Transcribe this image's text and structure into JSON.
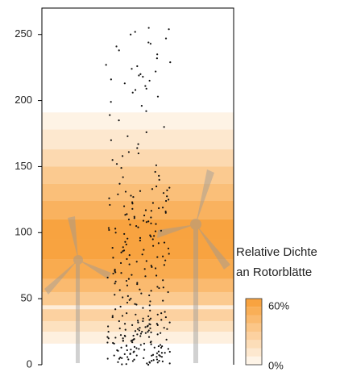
{
  "chart_data": {
    "type": "scatter",
    "ylim": [
      0,
      270
    ],
    "yticks": [
      0,
      50,
      100,
      150,
      200,
      250
    ],
    "point_color": "#111111",
    "band_color": "#f7931e",
    "bands": [
      {
        "from": 16,
        "to": 25,
        "value": 10
      },
      {
        "from": 25,
        "to": 33,
        "value": 20
      },
      {
        "from": 33,
        "to": 42,
        "value": 30
      },
      {
        "from": 42,
        "to": 45,
        "value": 12
      },
      {
        "from": 45,
        "to": 55,
        "value": 35
      },
      {
        "from": 55,
        "to": 65,
        "value": 45
      },
      {
        "from": 65,
        "to": 80,
        "value": 55
      },
      {
        "from": 80,
        "to": 95,
        "value": 60
      },
      {
        "from": 95,
        "to": 110,
        "value": 60
      },
      {
        "from": 110,
        "to": 124,
        "value": 50
      },
      {
        "from": 124,
        "to": 137,
        "value": 42
      },
      {
        "from": 137,
        "to": 150,
        "value": 35
      },
      {
        "from": 150,
        "to": 163,
        "value": 25
      },
      {
        "from": 163,
        "to": 178,
        "value": 15
      },
      {
        "from": 178,
        "to": 191,
        "value": 8
      }
    ],
    "values": [
      0,
      0.5,
      1,
      1,
      1.5,
      2,
      2,
      2.5,
      3,
      3,
      3.5,
      4,
      4,
      4.5,
      5,
      5,
      5.5,
      6,
      6,
      6.5,
      7,
      7,
      7.5,
      8,
      8,
      8.5,
      9,
      9,
      9.5,
      10,
      10,
      10.5,
      11,
      11,
      11.5,
      12,
      12,
      12.5,
      13,
      13,
      13.5,
      14,
      14,
      14.5,
      15,
      15,
      15.5,
      16,
      16,
      16.5,
      17,
      17,
      17.5,
      18,
      18,
      18.5,
      19,
      19,
      19.5,
      20,
      20,
      20.5,
      21,
      21,
      21.5,
      22,
      22,
      22.5,
      23,
      23,
      23.5,
      24,
      24,
      24.5,
      25,
      25,
      25.5,
      26,
      26,
      26.5,
      27,
      27,
      27.5,
      28,
      28,
      28.5,
      29,
      29,
      29.5,
      30,
      30,
      30.5,
      31,
      31,
      32,
      32,
      33,
      33,
      34,
      34,
      35,
      35,
      36,
      36,
      37,
      37,
      38,
      38,
      39,
      39,
      0.3,
      1.7,
      2.8,
      3.9,
      4.6,
      5.8,
      6.9,
      7.3,
      8.7,
      9.8,
      11.3,
      12.9,
      14.2,
      16.8,
      18.3,
      21.7,
      24.9,
      27.6,
      30.8,
      33.4,
      36.7,
      40,
      41,
      42,
      43,
      44,
      45,
      46,
      47,
      48,
      49,
      50,
      51,
      52,
      53,
      54,
      55,
      56,
      57,
      58,
      59,
      60,
      61,
      62,
      63,
      64,
      65,
      66,
      67,
      68,
      69,
      70,
      71,
      72,
      73,
      74,
      75,
      76,
      77,
      78,
      79,
      80,
      81,
      82,
      83,
      84,
      85,
      86,
      87,
      88,
      89,
      90,
      91,
      92,
      93,
      94,
      95,
      96,
      97,
      98,
      99,
      100,
      101,
      102,
      103,
      104,
      105,
      106,
      107,
      108,
      109,
      110,
      111,
      112,
      113,
      114,
      115,
      116,
      117,
      118,
      119,
      120,
      121,
      122,
      123,
      124,
      125,
      126,
      127,
      128,
      129,
      130,
      131,
      132,
      133,
      134,
      135,
      45.5,
      52.5,
      58.5,
      63.5,
      67.5,
      72.5,
      78.5,
      83.5,
      88.5,
      92.5,
      97.5,
      103.5,
      108.5,
      113.5,
      118.5,
      122.5,
      127.5,
      131.5,
      48.5,
      56.5,
      61.5,
      69.5,
      75.5,
      81.5,
      86.5,
      95.5,
      101.5,
      106.5,
      111.5,
      116.5,
      137,
      140,
      143,
      146,
      149,
      152,
      155,
      158,
      161,
      164,
      167,
      170,
      173,
      176,
      180,
      185,
      189,
      142,
      151,
      160,
      192,
      196,
      199,
      203,
      206,
      209,
      211,
      213,
      216,
      218,
      220,
      222,
      224,
      227,
      229,
      232,
      235,
      238,
      241,
      244,
      247,
      250,
      252,
      254,
      255,
      208,
      215,
      219,
      226,
      243
    ],
    "legend": {
      "title_lines": [
        "Relative Dichte",
        "an Rotorblätte"
      ],
      "range": [
        0,
        60
      ],
      "ticks": [
        {
          "value": 60,
          "label": "60%"
        },
        {
          "value": 0,
          "label": "0%"
        }
      ]
    }
  }
}
